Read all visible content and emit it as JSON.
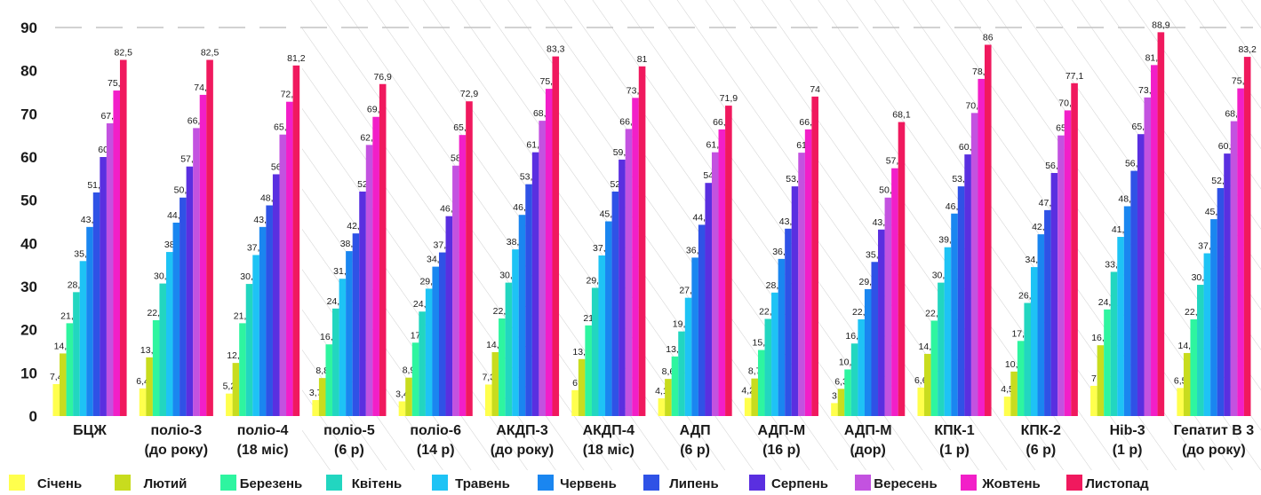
{
  "chart_data": {
    "type": "bar",
    "ylim": [
      0,
      90
    ],
    "yticks": [
      "0",
      "10",
      "20",
      "30",
      "40",
      "50",
      "60",
      "70",
      "80",
      "90"
    ],
    "grid": "dashed-top",
    "legend_position": "bottom",
    "categories": [
      [
        "БЦЖ"
      ],
      [
        "поліо-3",
        "(до року)"
      ],
      [
        "поліо-4",
        "(18 міс)"
      ],
      [
        "поліо-5",
        "(6 р)"
      ],
      [
        "поліо-6",
        "(14 р)"
      ],
      [
        "АКДП-3",
        "(до року)"
      ],
      [
        "АКДП-4",
        "(18 міс)"
      ],
      [
        "АДП",
        "(6 р)"
      ],
      [
        "АДП-М",
        "(16 р)"
      ],
      [
        "АДП-М",
        "(дор)"
      ],
      [
        "КПК-1",
        "(1 р)"
      ],
      [
        "КПК-2",
        "(6 р)"
      ],
      [
        "Hib-3",
        "(1 р)"
      ],
      [
        "Гепатит В 3",
        "(до року)"
      ]
    ],
    "series": [
      {
        "name": "Січень",
        "color": "#ffff4d",
        "values": [
          7.4,
          6.4,
          5.2,
          3.7,
          3.4,
          7.3,
          6,
          4.1,
          4.2,
          3,
          6.6,
          4.5,
          7,
          6.5
        ],
        "labels": [
          "7,4",
          "6,4",
          "5,2",
          "3,7",
          "3,4",
          "7,3",
          "6",
          "4,1",
          "4,2",
          "3",
          "6,6",
          "4,5",
          "7",
          "6,5"
        ]
      },
      {
        "name": "Лютий",
        "color": "#c8dc1e",
        "values": [
          14.5,
          13.6,
          12.3,
          8.8,
          8.9,
          14.8,
          13.2,
          8.6,
          8.7,
          6.3,
          14.4,
          10.3,
          16.4,
          14.6
        ],
        "labels": [
          "14,5",
          "13,6",
          "12,3",
          "8,8",
          "8,9",
          "14,8",
          "13,2",
          "8,6",
          "8,7",
          "6,3",
          "14,4",
          "10,3",
          "16,4",
          "14,6"
        ]
      },
      {
        "name": "Березень",
        "color": "#2ef5a0",
        "values": [
          21.5,
          22.2,
          21.5,
          16.6,
          17,
          22.6,
          21,
          13.8,
          15.3,
          10.8,
          22.1,
          17.4,
          24.7,
          22.4
        ],
        "labels": [
          "21,5",
          "22,2",
          "21,5",
          "16,6",
          "17",
          "22,6",
          "21",
          "13,8",
          "15,3",
          "10,8",
          "22,1",
          "17,4",
          "24,7",
          "22,4"
        ]
      },
      {
        "name": "Квітень",
        "color": "#22d6c0",
        "values": [
          28.7,
          30.7,
          30.6,
          24.9,
          24.2,
          30.9,
          29.7,
          19.6,
          22.5,
          16.8,
          30.9,
          26.2,
          33.4,
          30.4
        ],
        "labels": [
          "28,7",
          "30,7",
          "30,6",
          "24,9",
          "24,2",
          "30,9",
          "29,7",
          "19,6",
          "22,5",
          "16,8",
          "30,9",
          "26,2",
          "33,4",
          "30,4"
        ]
      },
      {
        "name": "Травень",
        "color": "#1ec3f5",
        "values": [
          35.9,
          38,
          37.3,
          31.8,
          29.5,
          38.6,
          37.2,
          27.4,
          28.6,
          22.4,
          39.1,
          34.5,
          41.5,
          37.7
        ],
        "labels": [
          "35,9",
          "38",
          "37,3",
          "31,8",
          "29,5",
          "38,6",
          "37,2",
          "27,4",
          "28,6",
          "22,4",
          "39,1",
          "34,5",
          "41,5",
          "37,7"
        ]
      },
      {
        "name": "Червень",
        "color": "#1a86f0",
        "values": [
          43.8,
          44.8,
          43.8,
          38.2,
          34.6,
          46.6,
          45.1,
          36.7,
          36.4,
          29.4,
          46.9,
          42.1,
          48.6,
          45.6
        ],
        "labels": [
          "43,8",
          "44,8",
          "43,8",
          "38,2",
          "34,6",
          "46,6",
          "45,1",
          "36,7",
          "36,4",
          "29,4",
          "46,9",
          "42,1",
          "48,6",
          "45,6"
        ]
      },
      {
        "name": "Липень",
        "color": "#2f52e6",
        "values": [
          51.8,
          50.6,
          48.8,
          42.3,
          37.9,
          53.7,
          52,
          44.3,
          43.4,
          35.7,
          53.2,
          47.7,
          56.8,
          52.8
        ],
        "labels": [
          "51,8",
          "50,6",
          "48,8",
          "42,3",
          "37,9",
          "53,7",
          "52",
          "44,3",
          "43,4",
          "35,7",
          "53,2",
          "47,7",
          "56,8",
          "52,8"
        ]
      },
      {
        "name": "Серпень",
        "color": "#5a2fe0",
        "values": [
          60,
          57.8,
          56,
          52,
          46.3,
          61.1,
          59.4,
          54,
          53.2,
          43.2,
          60.6,
          56.3,
          65.3,
          60.8
        ],
        "labels": [
          "60",
          "57,8",
          "56",
          "52",
          "46,3",
          "61,1",
          "59,4",
          "54",
          "53,2",
          "43,2",
          "60,6",
          "56,3",
          "65,3",
          "60,8"
        ]
      },
      {
        "name": "Вересень",
        "color": "#c352e0",
        "values": [
          67.8,
          66.7,
          65.2,
          62.8,
          58,
          68.4,
          66.5,
          61.1,
          61,
          50.6,
          70.2,
          65,
          73.8,
          68.3
        ],
        "labels": [
          "67,8",
          "66,7",
          "65,2",
          "62,8",
          "58",
          "68,4",
          "66,5",
          "61,1",
          "61",
          "50,6",
          "70,2",
          "65",
          "73,8",
          "68,3"
        ]
      },
      {
        "name": "Жовтень",
        "color": "#f21fc8",
        "values": [
          75.4,
          74.4,
          72.8,
          69.3,
          65.1,
          75.8,
          73.7,
          66.4,
          66.4,
          57.4,
          78.1,
          70.8,
          81.3,
          75.9
        ],
        "labels": [
          "75,4",
          "74,4",
          "72,8",
          "69,3",
          "65,1",
          "75,8",
          "73,7",
          "66,4",
          "66,4",
          "57,4",
          "78,1",
          "70,8",
          "81,3",
          "75,9"
        ]
      },
      {
        "name": "Листопад",
        "color": "#f0195e",
        "values": [
          82.5,
          82.5,
          81.2,
          76.9,
          72.9,
          83.3,
          81,
          71.9,
          74,
          68.1,
          86,
          77.1,
          88.9,
          83.2
        ],
        "labels": [
          "82,5",
          "82,5",
          "81,2",
          "76,9",
          "72,9",
          "83,3",
          "81",
          "71,9",
          "74",
          "68,1",
          "86",
          "77,1",
          "88,9",
          "83,2"
        ]
      }
    ]
  }
}
